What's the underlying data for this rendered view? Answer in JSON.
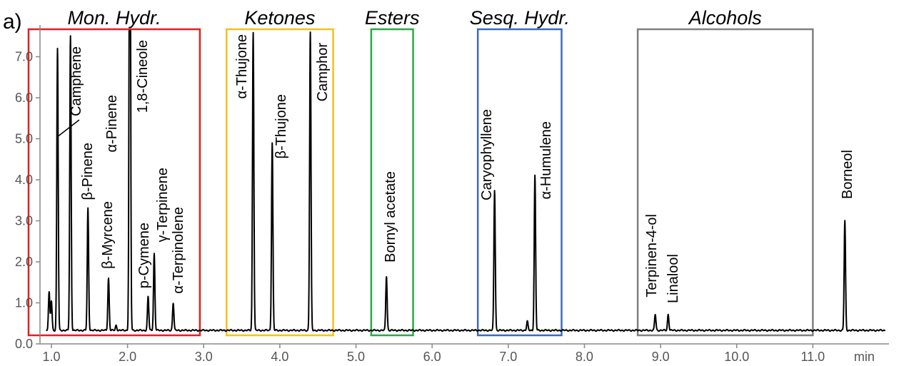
{
  "chart_data": {
    "type": "line",
    "panel_label": "a)",
    "x_unit": "min",
    "xlim": [
      0.85,
      12.0
    ],
    "ylim": [
      0.0,
      7.6
    ],
    "x_ticks": [
      1.0,
      2.0,
      3.0,
      4.0,
      5.0,
      6.0,
      7.0,
      8.0,
      9.0,
      10.0,
      11.0
    ],
    "x_tick_labels": [
      "1.0",
      "2.0",
      "3.0",
      "4.0",
      "5.0",
      "6.0",
      "7.0",
      "8.0",
      "9.0",
      "10.0",
      "11.0"
    ],
    "y_ticks": [
      0.0,
      1.0,
      2.0,
      3.0,
      4.0,
      5.0,
      6.0,
      7.0
    ],
    "y_tick_labels": [
      "0.0",
      "1.0",
      "2.0",
      "3.0",
      "4.0",
      "5.0",
      "6.0",
      "7.0"
    ],
    "grid": false,
    "baseline": 0.33,
    "groups": [
      {
        "label": "Mon. Hydr.",
        "x_range": [
          0.7,
          2.95
        ],
        "color": "#e02020"
      },
      {
        "label": "Ketones",
        "x_range": [
          3.3,
          4.7
        ],
        "color": "#f5c020"
      },
      {
        "label": "Esters",
        "x_range": [
          5.2,
          5.75
        ],
        "color": "#2aa84a"
      },
      {
        "label": "Sesq. Hydr.",
        "x_range": [
          6.6,
          7.7
        ],
        "color": "#3a6bc0"
      },
      {
        "label": "Alcohols",
        "x_range": [
          8.7,
          11.0
        ],
        "color": "#808080"
      }
    ],
    "peaks": [
      {
        "name": "",
        "rt": 0.97,
        "height": 1.25,
        "label": false
      },
      {
        "name": "",
        "rt": 1.0,
        "height": 1.05,
        "label": false
      },
      {
        "name": "",
        "rt": 1.08,
        "height": 7.2,
        "label": false
      },
      {
        "name": "Camphene",
        "rt": 1.25,
        "height": 7.5,
        "label": true
      },
      {
        "name": "β-Pinene",
        "rt": 1.48,
        "height": 3.3,
        "label": true
      },
      {
        "name": "β-Myrcene",
        "rt": 1.75,
        "height": 1.6,
        "label": true
      },
      {
        "name": "",
        "rt": 1.85,
        "height": 0.45,
        "label": false
      },
      {
        "name": "α-Pinene",
        "rt": 2.03,
        "height": 7.6,
        "label": true
      },
      {
        "name": "1,8-Cineole",
        "rt": 2.03,
        "height": 7.6,
        "label": true
      },
      {
        "name": "p-Cymene",
        "rt": 2.27,
        "height": 1.15,
        "label": true
      },
      {
        "name": "γ-Terpinene",
        "rt": 2.35,
        "height": 2.2,
        "label": true
      },
      {
        "name": "α-Terpinolene",
        "rt": 2.6,
        "height": 1.0,
        "label": true
      },
      {
        "name": "α-Thujone",
        "rt": 3.65,
        "height": 7.6,
        "label": true
      },
      {
        "name": "β-Thujone",
        "rt": 3.9,
        "height": 4.9,
        "label": true
      },
      {
        "name": "Camphor",
        "rt": 4.4,
        "height": 7.6,
        "label": true
      },
      {
        "name": "Bornyl acetate",
        "rt": 5.4,
        "height": 1.65,
        "label": true
      },
      {
        "name": "Caryophyllene",
        "rt": 6.82,
        "height": 3.75,
        "label": true
      },
      {
        "name": "",
        "rt": 7.25,
        "height": 0.55,
        "label": false
      },
      {
        "name": "α-Humulene",
        "rt": 7.35,
        "height": 4.1,
        "label": true
      },
      {
        "name": "Terpinen-4-ol",
        "rt": 8.93,
        "height": 0.72,
        "label": true
      },
      {
        "name": "Linalool",
        "rt": 9.1,
        "height": 0.72,
        "label": true
      },
      {
        "name": "Borneol",
        "rt": 11.42,
        "height": 3.0,
        "label": true
      }
    ]
  }
}
